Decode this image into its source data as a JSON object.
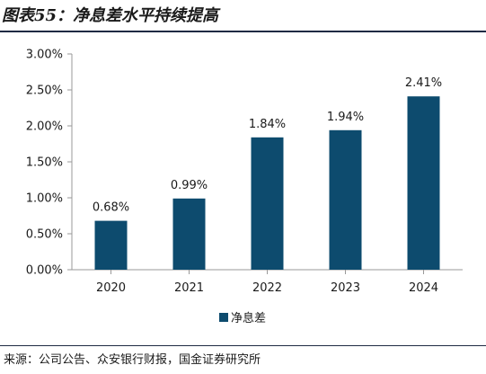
{
  "header": {
    "title": "图表55：净息差水平持续提高"
  },
  "footer": {
    "source": "来源：公司公告、众安银行财报，国金证券研究所"
  },
  "colors": {
    "bar": "#0d4b6e",
    "axis": "#999999",
    "text": "#1a1a1a"
  },
  "chart_data": {
    "type": "bar",
    "categories": [
      "2020",
      "2021",
      "2022",
      "2023",
      "2024"
    ],
    "series": [
      {
        "name": "净息差",
        "values": [
          0.68,
          0.99,
          1.84,
          1.94,
          2.41
        ]
      }
    ],
    "data_labels": [
      "0.68%",
      "0.99%",
      "1.84%",
      "1.94%",
      "2.41%"
    ],
    "y_ticks": [
      0,
      0.5,
      1.0,
      1.5,
      2.0,
      2.5,
      3.0
    ],
    "y_tick_labels": [
      "0.00%",
      "0.50%",
      "1.00%",
      "1.50%",
      "2.00%",
      "2.50%",
      "3.00%"
    ],
    "ylim": [
      0,
      3.0
    ],
    "ylabel": "",
    "xlabel": "",
    "grid": false,
    "legend_position": "bottom"
  }
}
